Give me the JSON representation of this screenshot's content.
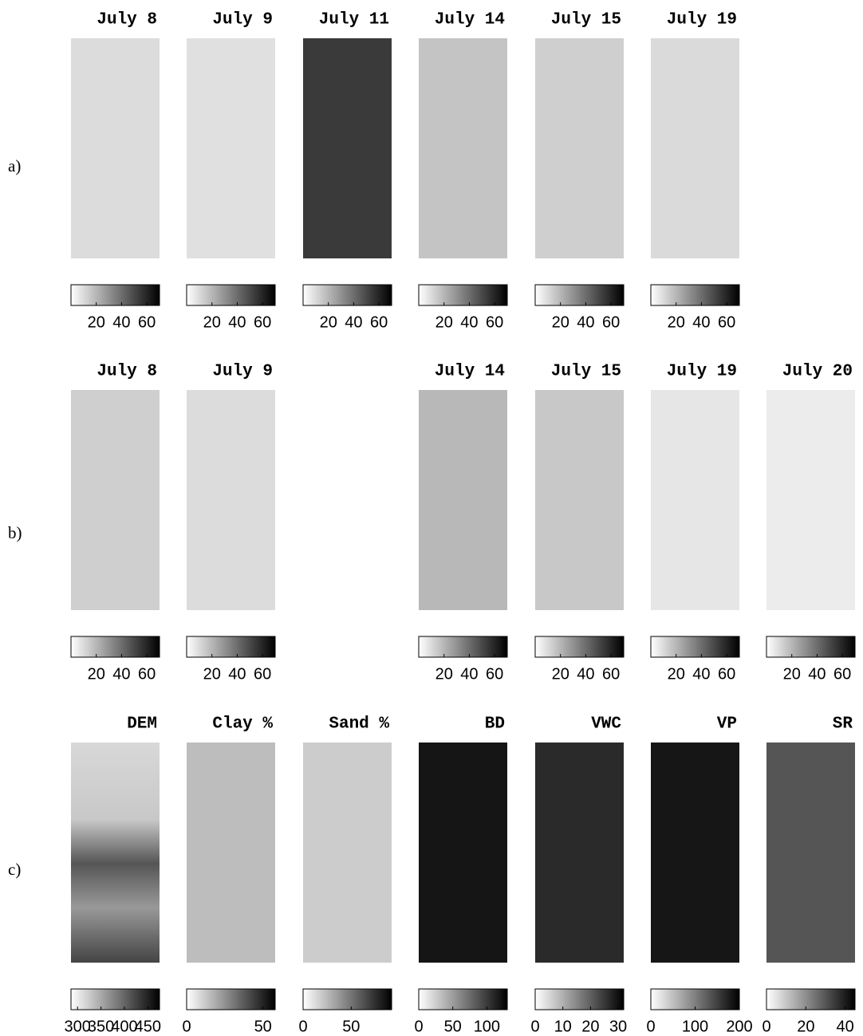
{
  "rows": [
    {
      "label": "a)",
      "panels": [
        {
          "title": "July 8",
          "clim": [
            0,
            70
          ],
          "ticks": [
            20,
            40,
            60
          ]
        },
        {
          "title": "July 9",
          "clim": [
            0,
            70
          ],
          "ticks": [
            20,
            40,
            60
          ]
        },
        {
          "title": "July 11",
          "clim": [
            0,
            70
          ],
          "ticks": [
            20,
            40,
            60
          ]
        },
        {
          "title": "July 14",
          "clim": [
            0,
            70
          ],
          "ticks": [
            20,
            40,
            60
          ]
        },
        {
          "title": "July 15",
          "clim": [
            0,
            70
          ],
          "ticks": [
            20,
            40,
            60
          ]
        },
        {
          "title": "July 19",
          "clim": [
            0,
            70
          ],
          "ticks": [
            20,
            40,
            60
          ]
        }
      ]
    },
    {
      "label": "b)",
      "panels": [
        {
          "title": "July 8",
          "clim": [
            0,
            70
          ],
          "ticks": [
            20,
            40,
            60
          ]
        },
        {
          "title": "July 9",
          "clim": [
            0,
            70
          ],
          "ticks": [
            20,
            40,
            60
          ]
        },
        null,
        {
          "title": "July 14",
          "clim": [
            0,
            70
          ],
          "ticks": [
            20,
            40,
            60
          ]
        },
        {
          "title": "July 15",
          "clim": [
            0,
            70
          ],
          "ticks": [
            20,
            40,
            60
          ]
        },
        {
          "title": "July 19",
          "clim": [
            0,
            70
          ],
          "ticks": [
            20,
            40,
            60
          ]
        },
        {
          "title": "July 20",
          "clim": [
            0,
            70
          ],
          "ticks": [
            20,
            40,
            60
          ]
        }
      ]
    },
    {
      "label": "c)",
      "panels": [
        {
          "title": "DEM",
          "clim": [
            286,
            475
          ],
          "ticks": [
            300,
            350,
            400,
            450
          ]
        },
        {
          "title": "Clay %",
          "clim": [
            0,
            58
          ],
          "ticks": [
            0,
            50
          ]
        },
        {
          "title": "Sand %",
          "clim": [
            0,
            92
          ],
          "ticks": [
            0,
            50
          ]
        },
        {
          "title": "BD",
          "clim": [
            0,
            130
          ],
          "ticks": [
            0,
            50,
            100
          ]
        },
        {
          "title": "VWC",
          "clim": [
            0,
            32
          ],
          "ticks": [
            0,
            10,
            20,
            30
          ]
        },
        {
          "title": "VP",
          "clim": [
            0,
            200
          ],
          "ticks": [
            0,
            100,
            200
          ]
        },
        {
          "title": "SR",
          "clim": [
            0,
            45
          ],
          "ticks": [
            0,
            20,
            40
          ]
        }
      ]
    }
  ]
}
